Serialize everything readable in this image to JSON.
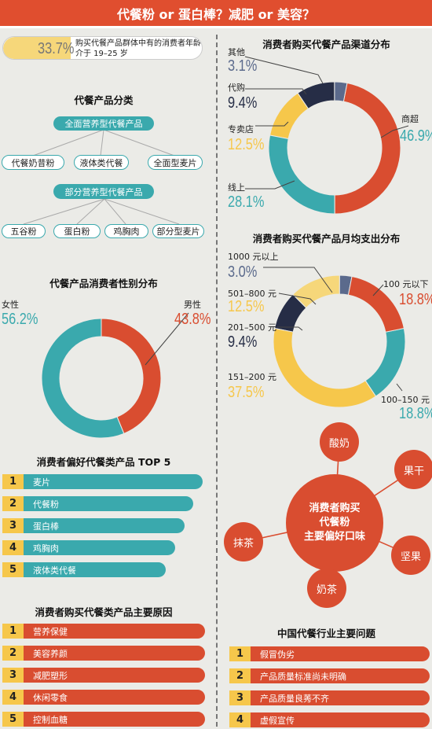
{
  "header": {
    "title": "代餐粉 or 蛋白棒？减肥 or 美容？"
  },
  "stat": {
    "value": "33.7%",
    "text": "购买代餐产品群体中有的消费者年龄介于 19–25 岁"
  },
  "categories": {
    "title": "代餐产品分类",
    "full": {
      "label": "全面营养型代餐产品",
      "items": [
        "代餐奶昔粉",
        "液体类代餐",
        "全面型麦片"
      ]
    },
    "partial": {
      "label": "部分营养型代餐产品",
      "items": [
        "五谷粉",
        "蛋白粉",
        "鸡胸肉",
        "部分型麦片"
      ]
    }
  },
  "chart_data": [
    {
      "type": "pie",
      "title": "代餐产品消费者性别分布",
      "labels": [
        "女性",
        "男性"
      ],
      "values": [
        56.2,
        43.8
      ],
      "value_labels": [
        "56.2%",
        "43.8%"
      ],
      "colors": [
        "#3aa9ad",
        "#d94d30"
      ]
    },
    {
      "type": "pie",
      "title": "消费者购买代餐产品渠道分布",
      "labels": [
        "商超",
        "线上",
        "专卖店",
        "代购",
        "其他"
      ],
      "values": [
        46.9,
        28.1,
        12.5,
        9.4,
        3.1
      ],
      "value_labels": [
        "46.9%",
        "28.1%",
        "12.5%",
        "9.4%",
        "3.1%"
      ],
      "colors": [
        "#d94d30",
        "#3aa9ad",
        "#f6c74b",
        "#262d46",
        "#5b6a8c"
      ]
    },
    {
      "type": "pie",
      "title": "消费者购买代餐产品月均支出分布",
      "labels": [
        "100 元以下",
        "100–150 元",
        "151–200 元",
        "201–500 元",
        "501–800 元",
        "1000 元以上"
      ],
      "values": [
        18.8,
        18.8,
        37.5,
        9.4,
        12.5,
        3.0
      ],
      "value_labels": [
        "18.8%",
        "18.8%",
        "37.5%",
        "9.4%",
        "12.5%",
        "3.0%"
      ],
      "colors": [
        "#d94d30",
        "#3aa9ad",
        "#f6c74b",
        "#262d46",
        "#f6d77a",
        "#5b6a8c"
      ]
    },
    {
      "type": "bar",
      "title": "消费者偏好代餐类产品 TOP 5",
      "ranks": [
        "1",
        "2",
        "3",
        "4",
        "5"
      ],
      "categories": [
        "麦片",
        "代餐粉",
        "蛋白棒",
        "鸡胸肉",
        "液体类代餐"
      ],
      "values": [
        5,
        4,
        3,
        2,
        1
      ],
      "color": "#3aa9ad"
    },
    {
      "type": "bar",
      "title": "消费者购买代餐类产品主要原因",
      "ranks": [
        "1",
        "2",
        "3",
        "4",
        "5"
      ],
      "categories": [
        "营养保健",
        "美容养颜",
        "减肥塑形",
        "休闲零食",
        "控制血糖"
      ],
      "values": [
        5,
        4,
        3,
        2,
        1
      ],
      "color": "#d94d30"
    },
    {
      "type": "bar",
      "title": "中国代餐行业主要问题",
      "ranks": [
        "1",
        "2",
        "3",
        "4"
      ],
      "categories": [
        "假冒伪劣",
        "产品质量标准尚未明确",
        "产品质量良莠不齐",
        "虚假宣传"
      ],
      "values": [
        4,
        3,
        2,
        1
      ],
      "color": "#d94d30"
    }
  ],
  "flavors": {
    "center": [
      "消费者购买",
      "代餐粉",
      "主要偏好口味"
    ],
    "items": [
      "酸奶",
      "果干",
      "坚果",
      "奶茶",
      "抹茶"
    ]
  },
  "colors": {
    "red": "#d94d30",
    "teal": "#3aa9ad",
    "yellow": "#f6c74b",
    "navy": "#262d46",
    "slate": "#5b6a8c"
  }
}
